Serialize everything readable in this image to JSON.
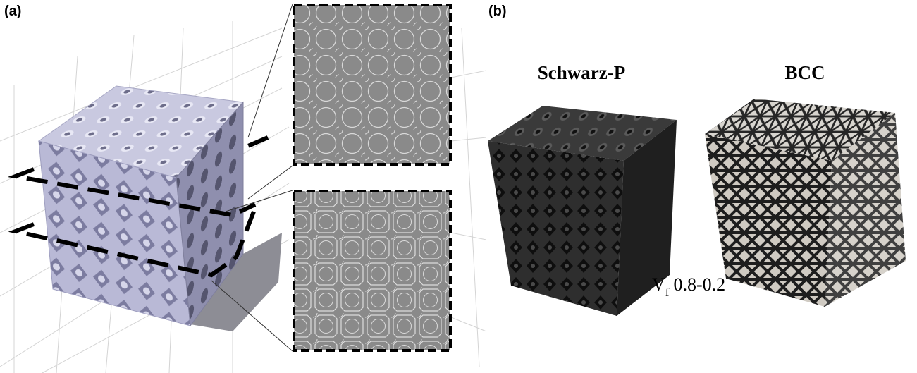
{
  "panels": [
    {
      "label": "(a)"
    },
    {
      "label": "(b)",
      "captions": [
        "Schwarz-P",
        "BCC"
      ],
      "annotation": {
        "symbol": "V",
        "subscript": "f",
        "text": "0.8-0.2"
      }
    }
  ]
}
